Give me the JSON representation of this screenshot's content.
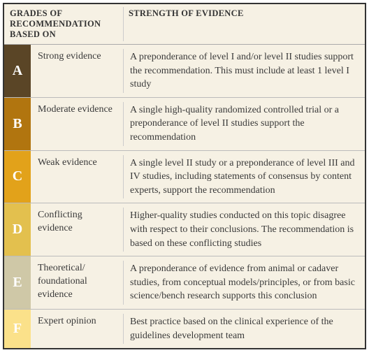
{
  "table": {
    "background_color": "#f6f1e4",
    "border_color": "#333333",
    "header": {
      "left": "GRADES OF RECOMMENDATION BASED ON",
      "right": "STRENGTH OF EVIDENCE",
      "fontsize": 12.5,
      "font_weight": "bold",
      "text_color": "#333333"
    },
    "body_fontsize": 14,
    "body_text_color": "#3a3a3a",
    "badge_fontsize": 20,
    "badge_text_color": "#ffffff",
    "rows": [
      {
        "letter": "A",
        "badge_color": "#5a4526",
        "label": "Strong evidence",
        "description": "A preponderance of level I and/or level II studies support the recommendation. This must include at least 1 level I study"
      },
      {
        "letter": "B",
        "badge_color": "#b1750f",
        "label": "Moderate evidence",
        "description": "A single high-quality randomized controlled trial or a preponderance of level II studies support the recommendation"
      },
      {
        "letter": "C",
        "badge_color": "#e2a21a",
        "label": "Weak evidence",
        "description": "A single level II study or a preponderance of level III and IV studies, including statements of consensus by content experts, support the recommendation"
      },
      {
        "letter": "D",
        "badge_color": "#e3c04e",
        "label": "Conflicting evidence",
        "description": "Higher-quality studies conducted on this topic disagree with respect to their conclusions. The recommendation is based on these conflicting studies"
      },
      {
        "letter": "E",
        "badge_color": "#cfc8a7",
        "label": "Theoretical/ foundational evidence",
        "description": "A preponderance of evidence from animal or cadaver studies, from conceptual models/principles, or from basic science/bench research supports this conclusion"
      },
      {
        "letter": "F",
        "badge_color": "#fbe18a",
        "label": "Expert opinion",
        "description": "Best practice based on the clinical experience of the guidelines development team"
      }
    ]
  }
}
